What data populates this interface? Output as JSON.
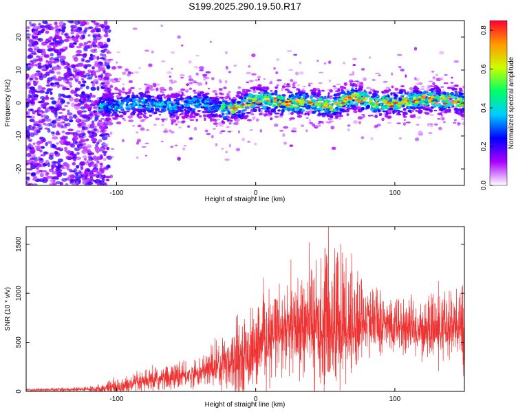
{
  "title": "S199.2025.290.19.50.R17",
  "colors": {
    "signal": "#ee3333",
    "axis": "#000000",
    "scatter_base": "#7a33ff"
  },
  "chart_data": [
    {
      "type": "heatmap",
      "xlabel": "Height of straight line (km)",
      "ylabel": "Frequency (Hz)",
      "xlim": [
        -165,
        150
      ],
      "ylim": [
        -25,
        25
      ],
      "xticks": [
        -100,
        0,
        100
      ],
      "yticks": [
        -20,
        -10,
        0,
        10,
        20
      ],
      "xtick_labels": [
        "-100",
        "0",
        "100"
      ],
      "ytick_labels": [
        "-20",
        "-10",
        "0",
        "10",
        "20"
      ],
      "colorbar": {
        "label": "Normalized spectral amplitude",
        "range": [
          0,
          0.85
        ],
        "ticks": [
          0,
          0.2,
          0.4,
          0.6,
          0.8
        ],
        "tick_labels": [
          "0.0",
          "0.2",
          "0.4",
          "0.6",
          "0.8"
        ],
        "colormap": [
          "#ffffff",
          "#aa00ff",
          "#0000ff",
          "#00ccff",
          "#00ff66",
          "#ccff00",
          "#ff9900",
          "#ff0033"
        ]
      },
      "band_center_hz": [
        [
          -100,
          -1
        ],
        [
          -80,
          0
        ],
        [
          -60,
          -1
        ],
        [
          -40,
          0
        ],
        [
          -20,
          -2
        ],
        [
          -10,
          -1
        ],
        [
          0,
          1
        ],
        [
          20,
          0
        ],
        [
          40,
          0
        ],
        [
          55,
          -1
        ],
        [
          70,
          2
        ],
        [
          85,
          0
        ],
        [
          100,
          0
        ],
        [
          120,
          1
        ],
        [
          140,
          1
        ],
        [
          150,
          0
        ]
      ],
      "band_halfwidth_hz": 2,
      "notes": "Broad scattered low-amplitude points for x < -105 km; concentrated narrow band near 0 Hz with highest amplitudes between -20 and 150 km."
    },
    {
      "type": "line",
      "xlabel": "Height of straight line (km)",
      "ylabel": "SNR (10 * v/v)",
      "xlim": [
        -165,
        150
      ],
      "ylim": [
        0,
        1680
      ],
      "xticks": [
        -100,
        0,
        100
      ],
      "yticks": [
        0,
        500,
        1000,
        1500
      ],
      "xtick_labels": [
        "-100",
        "0",
        "100"
      ],
      "ytick_labels": [
        "0",
        "500",
        "1000",
        "1500"
      ],
      "series": [
        {
          "name": "SNR",
          "color": "#ee3333",
          "envelope": {
            "x": [
              -165,
              -120,
              -100,
              -80,
              -60,
              -40,
              -30,
              -20,
              -10,
              0,
              10,
              20,
              40,
              60,
              80,
              100,
              120,
              150
            ],
            "mean": [
              15,
              20,
              40,
              90,
              140,
              180,
              250,
              310,
              350,
              420,
              520,
              600,
              660,
              700,
              700,
              660,
              620,
              640
            ],
            "peak": [
              30,
              50,
              140,
              220,
              300,
              330,
              520,
              700,
              820,
              880,
              1000,
              1160,
              1300,
              1680,
              1100,
              1000,
              950,
              1150
            ]
          }
        }
      ]
    }
  ]
}
